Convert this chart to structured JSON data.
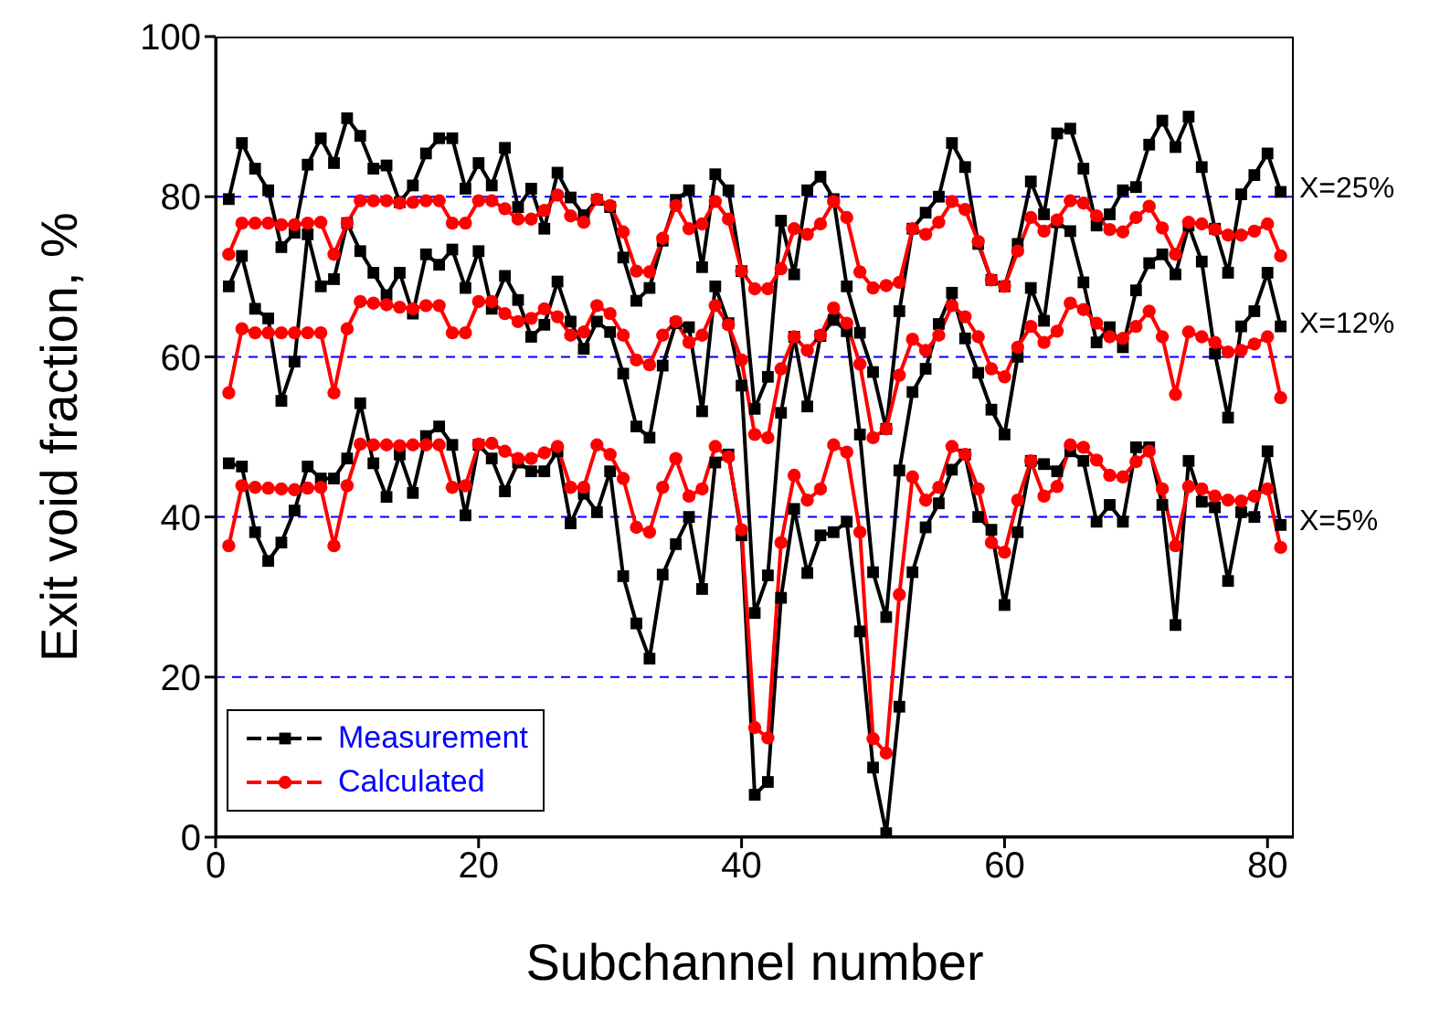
{
  "chart_data": {
    "type": "line",
    "xlabel": "Subchannel number",
    "ylabel": "Exit void fraction, %",
    "x": [
      1,
      2,
      3,
      4,
      5,
      6,
      7,
      8,
      9,
      10,
      11,
      12,
      13,
      14,
      15,
      16,
      17,
      18,
      19,
      20,
      21,
      22,
      23,
      24,
      25,
      26,
      27,
      28,
      29,
      30,
      31,
      32,
      33,
      34,
      35,
      36,
      37,
      38,
      39,
      40,
      41,
      42,
      43,
      44,
      45,
      46,
      47,
      48,
      49,
      50,
      51,
      52,
      53,
      54,
      55,
      56,
      57,
      58,
      59,
      60,
      61,
      62,
      63,
      64,
      65,
      66,
      67,
      68,
      69,
      70,
      71,
      72,
      73,
      74,
      75,
      76,
      77,
      78,
      79,
      80,
      81
    ],
    "series": [
      {
        "name": "Measurement",
        "color": "#000000",
        "marker": "square",
        "values": [
          79.7,
          86.7,
          83.5,
          80.8,
          73.7,
          75.5,
          84,
          87.3,
          84.2,
          89.8,
          87.6,
          83.5,
          83.9,
          79.3,
          81.4,
          85.4,
          87.3,
          87.3,
          81,
          84.2,
          81.4,
          86.1,
          78.7,
          81,
          76,
          83,
          79.9,
          77.7,
          79.6,
          78.7,
          72.4,
          67,
          68.6,
          74.5,
          79.6,
          80.8,
          71.2,
          82.8,
          80.8,
          70.7,
          53.5,
          57.5,
          77,
          70.3,
          80.8,
          82.5,
          79.7,
          68.8,
          63,
          58.1,
          51,
          65.7,
          76,
          78,
          80,
          86.7,
          83.7,
          74.1,
          69.6,
          68.8,
          74.1,
          81.9,
          77.8,
          87.9,
          88.5,
          83.5,
          76.4,
          77.8,
          80.8,
          81.2,
          86.5,
          89.5,
          86.2,
          90,
          83.7,
          76,
          70.5,
          80.3,
          82.7,
          85.4,
          80.6
        ]
      },
      {
        "color": "#000000",
        "marker": "square",
        "values": [
          68.8,
          72.6,
          66,
          64.8,
          54.5,
          59.4,
          75.3,
          68.8,
          69.7,
          76.7,
          73.2,
          70.5,
          67.7,
          70.5,
          65.4,
          72.8,
          71.5,
          73.4,
          68.6,
          73.2,
          66,
          70.1,
          67.1,
          62.5,
          64,
          69.4,
          64.4,
          61,
          64.4,
          63.1,
          57.9,
          51.3,
          49.9,
          58.9,
          64.2,
          63.7,
          53.2,
          68.8,
          64.2,
          56.4,
          28,
          32.7,
          53,
          62.5,
          53.8,
          62.6,
          64.6,
          63.2,
          50.3,
          33.1,
          27.5,
          45.8,
          55.6,
          58.5,
          64.1,
          68,
          62.3,
          58,
          53.4,
          50.3,
          60,
          68.6,
          64.5,
          76.8,
          75.7,
          69.3,
          61.8,
          63.7,
          61.2,
          68.3,
          71.7,
          72.8,
          70.3,
          76.4,
          71.9,
          60.4,
          52.4,
          63.8,
          65.7,
          70.5,
          63.8
        ]
      },
      {
        "color": "#000000",
        "marker": "square",
        "values": [
          46.7,
          46.3,
          38.1,
          34.5,
          36.8,
          40.8,
          46.3,
          44.8,
          44.8,
          47.3,
          54.2,
          46.7,
          42.5,
          47.8,
          43,
          50.1,
          51.3,
          49,
          40.2,
          49,
          47.3,
          43.2,
          46.8,
          45.7,
          45.7,
          48.2,
          39.2,
          42.9,
          40.6,
          45.7,
          32.6,
          26.7,
          22.3,
          32.8,
          36.6,
          40,
          31,
          46.8,
          47.8,
          37.7,
          5.3,
          6.9,
          29.9,
          41,
          33,
          37.7,
          38.1,
          39.4,
          25.7,
          8.7,
          0.5,
          16.3,
          33.1,
          38.7,
          41.7,
          45.9,
          47.8,
          40,
          38.4,
          29,
          38.1,
          47,
          46.6,
          45.7,
          48.2,
          47,
          39.4,
          41.5,
          39.4,
          48.7,
          48.7,
          41.5,
          26.5,
          47,
          41.9,
          41.2,
          32,
          40.6,
          40,
          48.2,
          39
        ]
      },
      {
        "name": "Calculated",
        "color": "#ff0000",
        "marker": "circle",
        "values": [
          72.8,
          76.7,
          76.7,
          76.7,
          76.5,
          76.5,
          76.7,
          76.8,
          72.8,
          76.7,
          79.5,
          79.5,
          79.5,
          79.2,
          79.3,
          79.5,
          79.5,
          76.7,
          76.7,
          79.5,
          79.5,
          78.5,
          77.2,
          77.2,
          78.3,
          80.2,
          77.6,
          76.8,
          79.7,
          78.9,
          75.6,
          70.7,
          70.6,
          74.8,
          78.9,
          76,
          76.6,
          79.4,
          77.2,
          70.7,
          68.5,
          68.5,
          71,
          76,
          75.3,
          76.6,
          79.4,
          77.4,
          70.6,
          68.6,
          68.9,
          69.3,
          76,
          75.3,
          76.8,
          79.4,
          78.4,
          74.4,
          69.6,
          68.8,
          73.2,
          77.4,
          75.7,
          77.1,
          79.5,
          79.2,
          77.6,
          75.9,
          75.6,
          77.4,
          78.8,
          76.1,
          72.8,
          76.8,
          76.6,
          75.9,
          75.2,
          75.2,
          75.7,
          76.6,
          72.6
        ]
      },
      {
        "color": "#ff0000",
        "marker": "circle",
        "values": [
          55.5,
          63.5,
          63,
          63,
          63,
          63,
          63,
          63,
          55.5,
          63.5,
          66.9,
          66.7,
          66.5,
          66.2,
          66,
          66.4,
          66.4,
          63,
          63,
          66.9,
          66.9,
          65.4,
          64.4,
          64.8,
          66,
          65,
          62.7,
          63.1,
          66.4,
          65.4,
          62.7,
          59.6,
          59,
          62.7,
          64.4,
          61.8,
          62.7,
          66.4,
          64,
          59.6,
          50.3,
          49.9,
          58.5,
          62.5,
          60.8,
          62.7,
          66.1,
          64.2,
          59.1,
          49.9,
          51,
          57.7,
          62.2,
          60.8,
          62.7,
          66.4,
          65,
          62.5,
          58.5,
          57.5,
          61.2,
          63.8,
          61.8,
          63.2,
          66.7,
          65.9,
          64.2,
          62.5,
          62.3,
          63.8,
          65.7,
          62.5,
          55.3,
          63.1,
          62.5,
          61.8,
          60.6,
          60.8,
          61.6,
          62.5,
          54.9
        ]
      },
      {
        "color": "#ff0000",
        "marker": "circle",
        "values": [
          36.4,
          43.9,
          43.7,
          43.6,
          43.5,
          43.4,
          43.6,
          43.7,
          36.4,
          43.9,
          49.1,
          49,
          49,
          48.9,
          49,
          49,
          49,
          43.7,
          43.9,
          49.1,
          49.2,
          48.2,
          47.3,
          47.3,
          48,
          48.8,
          43.7,
          43.7,
          49,
          47.8,
          44.8,
          38.7,
          38.1,
          43.7,
          47.3,
          42.6,
          43.5,
          48.8,
          47.5,
          38.4,
          13.7,
          12.4,
          36.8,
          45.2,
          42.1,
          43.5,
          49,
          48.1,
          38.1,
          12.3,
          10.5,
          30.3,
          45,
          42.1,
          43.7,
          48.8,
          47.8,
          43.5,
          36.8,
          35.6,
          42.1,
          47,
          42.6,
          43.8,
          49,
          48.7,
          47.1,
          45.2,
          45,
          46.9,
          48.2,
          43.5,
          36.4,
          43.8,
          43.5,
          42.6,
          42.1,
          42,
          42.6,
          43.5,
          36.2
        ]
      }
    ],
    "xlim": [
      0,
      82
    ],
    "xticks": [
      0,
      20,
      40,
      60,
      80
    ],
    "ylim": [
      0,
      100
    ],
    "yticks": [
      0,
      20,
      40,
      60,
      80,
      100
    ],
    "ref_lines": [
      {
        "axis": "y",
        "value": 20,
        "color": "#0000ff",
        "line_style": "dashed"
      },
      {
        "axis": "y",
        "value": 40,
        "color": "#0000ff",
        "line_style": "dashed"
      },
      {
        "axis": "y",
        "value": 60,
        "color": "#0000ff",
        "line_style": "dashed"
      },
      {
        "axis": "y",
        "value": 80,
        "color": "#0000ff",
        "line_style": "dashed"
      }
    ],
    "annotations": [
      "X=25%",
      "X=12%",
      "X=5%"
    ],
    "legend": "bottom left"
  }
}
